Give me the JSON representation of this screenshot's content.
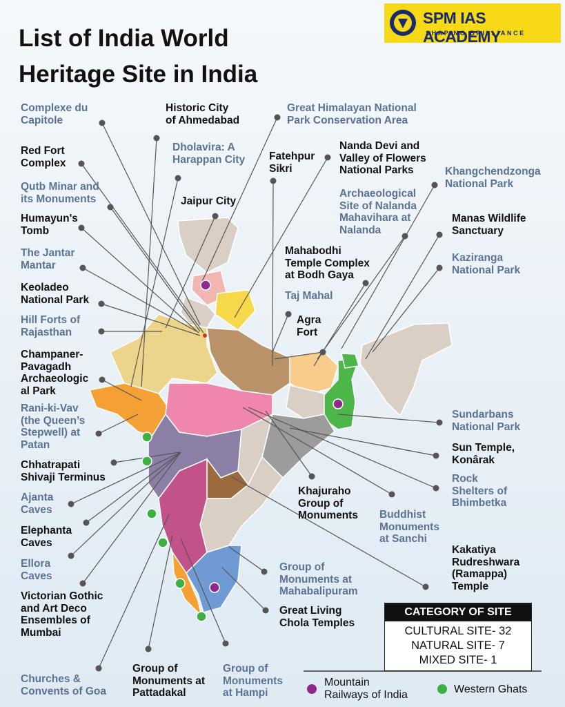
{
  "logo": {
    "name": "SPM IAS ACADEMY",
    "tagline": "SHAPING BRILLIANCE"
  },
  "title": "List of India World\nHeritage Site in India",
  "sites": [
    {
      "label": "Complexe du\nCapitole",
      "color": "#5b7393"
    },
    {
      "label": "Historic City\nof Ahmedabad",
      "color": "#111111"
    },
    {
      "label": "Great Himalayan National\nPark Conservation Area",
      "color": "#5b7393"
    },
    {
      "label": "Red Fort\nComplex",
      "color": "#111111"
    },
    {
      "label": "Dholavira: A\nHarappan City",
      "color": "#5b7393"
    },
    {
      "label": "Fatehpur\nSikri",
      "color": "#111111"
    },
    {
      "label": "Nanda Devi and\nValley of Flowers\nNational Parks",
      "color": "#111111"
    },
    {
      "label": "Khangchendzonga\nNational Park",
      "color": "#5b7393"
    },
    {
      "label": "Qutb Minar and\nits Monuments",
      "color": "#5b7393"
    },
    {
      "label": "Jaipur City",
      "color": "#111111"
    },
    {
      "label": "Archaeological\nSite of Nalanda\nMahavihara at\nNalanda",
      "color": "#5b7393"
    },
    {
      "label": "Humayun's\nTomb",
      "color": "#111111"
    },
    {
      "label": "Manas Wildlife\nSanctuary",
      "color": "#111111"
    },
    {
      "label": "The Jantar\nMantar",
      "color": "#5b7393"
    },
    {
      "label": "Mahabodhi\nTemple Complex\nat Bodh Gaya",
      "color": "#111111"
    },
    {
      "label": "Keoladeo\nNational Park",
      "color": "#111111"
    },
    {
      "label": "Kaziranga\nNational Park",
      "color": "#5b7393"
    },
    {
      "label": "Taj Mahal",
      "color": "#5b7393"
    },
    {
      "label": "Agra\nFort",
      "color": "#111111"
    },
    {
      "label": "Hill Forts of\nRajasthan",
      "color": "#5b7393"
    },
    {
      "label": "Champaner-\nPavagadh\nArchaeologic\nal Park",
      "color": "#111111"
    },
    {
      "label": "Rani-ki-Vav\n(the Queen’s\nStepwell) at\nPatan",
      "color": "#5b7393"
    },
    {
      "label": "Chhatrapati\nShivaji Terminus",
      "color": "#111111"
    },
    {
      "label": "Ajanta\nCaves",
      "color": "#5b7393"
    },
    {
      "label": "Elephanta\nCaves",
      "color": "#111111"
    },
    {
      "label": "Ellora\nCaves",
      "color": "#5b7393"
    },
    {
      "label": "Victorian Gothic\nand Art Deco\nEnsembles of\nMumbai",
      "color": "#111111"
    },
    {
      "label": "Churches &\nConvents of Goa",
      "color": "#5b7393"
    },
    {
      "label": "Group of\nMonuments at\nPattadakal",
      "color": "#111111"
    },
    {
      "label": "Group of\nMonuments\nat Hampi",
      "color": "#5b7393"
    },
    {
      "label": "Sundarbans\nNational Park",
      "color": "#5b7393"
    },
    {
      "label": "Sun Temple,\nKonârak",
      "color": "#111111"
    },
    {
      "label": "Rock\nShelters of\nBhimbetka",
      "color": "#5b7393"
    },
    {
      "label": "Khajuraho\nGroup of\nMonuments",
      "color": "#111111"
    },
    {
      "label": "Buddhist\nMonuments\nat Sanchi",
      "color": "#5b7393"
    },
    {
      "label": "Kakatiya\nRudreshwara\n(Ramappa)\nTemple",
      "color": "#111111"
    },
    {
      "label": "Group of\nMonuments at\nMahabalipuram",
      "color": "#5b7393"
    },
    {
      "label": "Great Living\nChola Temples",
      "color": "#111111"
    }
  ],
  "category": {
    "title": "CATEGORY OF SITE",
    "lines": [
      "CULTURAL SITE- 32",
      "NATURAL SITE- 7",
      "MIXED SITE- 1"
    ]
  },
  "legend": [
    {
      "label": "Mountain\nRailways of India",
      "color": "#8e2a8e"
    },
    {
      "label": "Western Ghats",
      "color": "#3cb043"
    }
  ]
}
